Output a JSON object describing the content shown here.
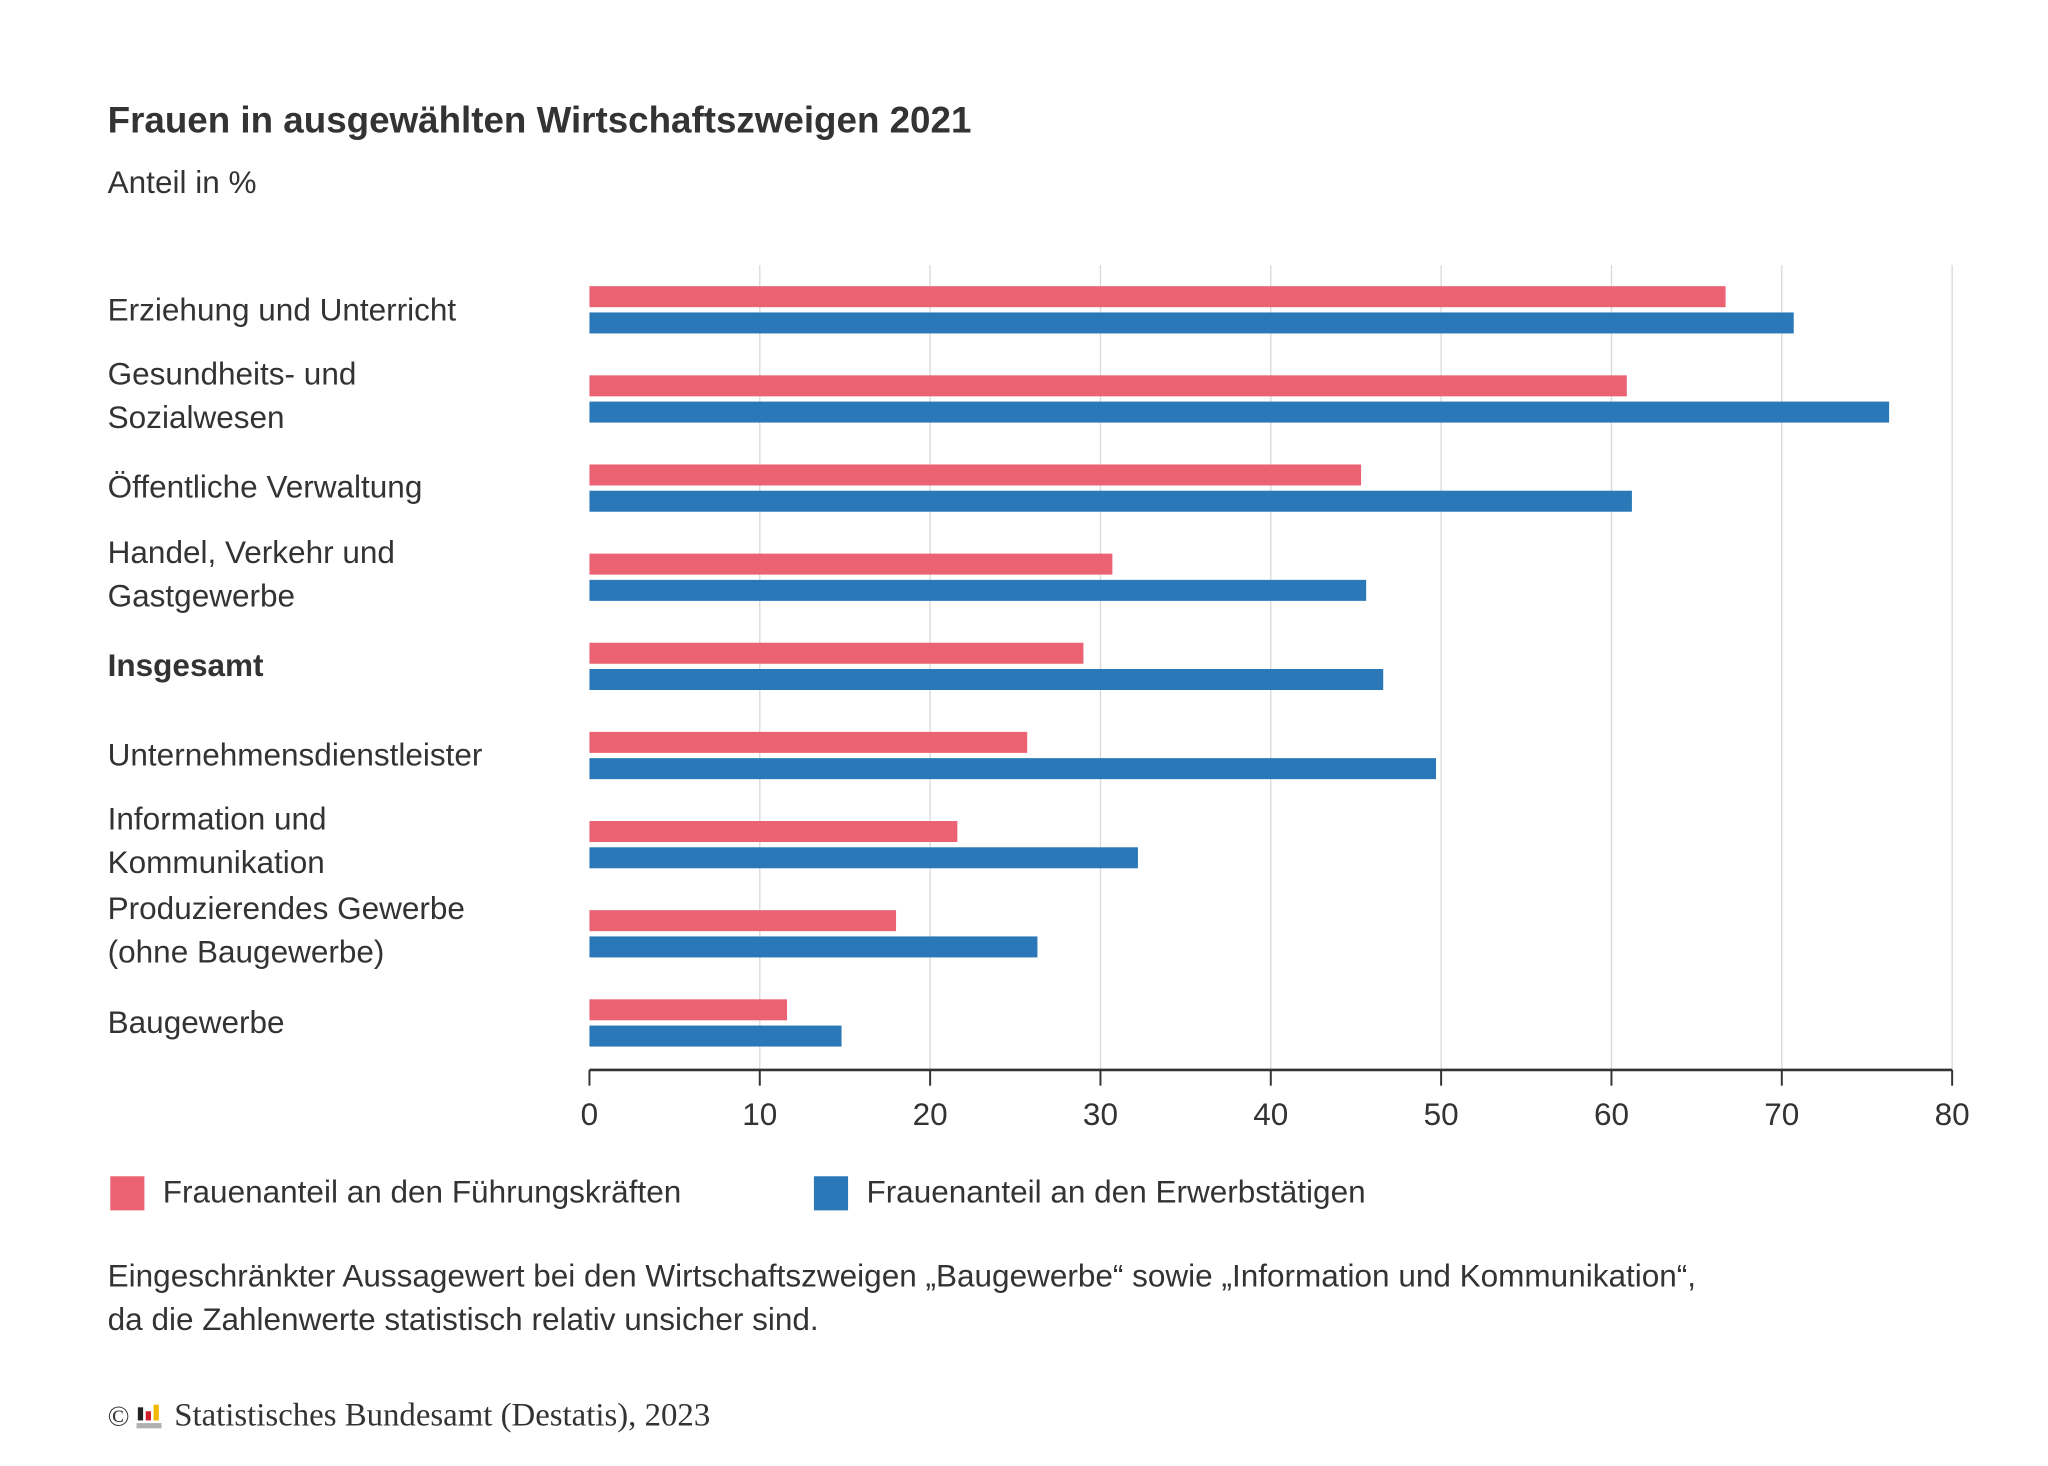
{
  "chart_data": {
    "type": "bar",
    "orientation": "horizontal",
    "title": "Frauen in ausgewählten Wirtschaftszweigen 2021",
    "subtitle": "Anteil in %",
    "categories": [
      "Erziehung und Unterricht",
      "Gesundheits- und Sozialwesen",
      "Öffentliche Verwaltung",
      "Handel, Verkehr und Gastgewerbe",
      "Insgesamt",
      "Unternehmensdienstleister",
      "Information und Kommunikation",
      "Produzierendes Gewerbe (ohne Baugewerbe)",
      "Baugewerbe"
    ],
    "category_lines": [
      [
        "Erziehung und Unterricht"
      ],
      [
        "Gesundheits- und",
        "Sozialwesen"
      ],
      [
        "Öffentliche Verwaltung"
      ],
      [
        "Handel, Verkehr und",
        "Gastgewerbe"
      ],
      [
        "Insgesamt"
      ],
      [
        "Unternehmensdienstleister"
      ],
      [
        "Information und",
        "Kommunikation"
      ],
      [
        "Produzierendes Gewerbe",
        "(ohne Baugewerbe)"
      ],
      [
        "Baugewerbe"
      ]
    ],
    "bold_category": "Insgesamt",
    "series": [
      {
        "name": "Frauenanteil an den Führungskräften",
        "color": "#EB6273",
        "values": [
          66.7,
          60.9,
          45.3,
          30.7,
          29.0,
          25.7,
          21.6,
          18.0,
          11.6
        ]
      },
      {
        "name": "Frauenanteil an den Erwerbstätigen",
        "color": "#2A78B8",
        "values": [
          70.7,
          76.3,
          61.2,
          45.6,
          46.6,
          49.7,
          32.2,
          26.3,
          14.8
        ]
      }
    ],
    "xlim": [
      0,
      80
    ],
    "xticks": [
      "0",
      "10",
      "20",
      "30",
      "40",
      "50",
      "60",
      "70",
      "80"
    ],
    "grid": true,
    "legend_position": "bottom-left"
  },
  "footnote": [
    "Eingeschränkter Aussagewert bei den Wirtschaftszweigen „Baugewerbe“ sowie „Information und Kommunikation“,",
    "da die Zahlenwerte statistisch relativ unsicher sind."
  ],
  "copyright": {
    "symbol": "©",
    "text": "Statistisches Bundesamt (Destatis), 2023",
    "logo": "destatis-logo"
  }
}
